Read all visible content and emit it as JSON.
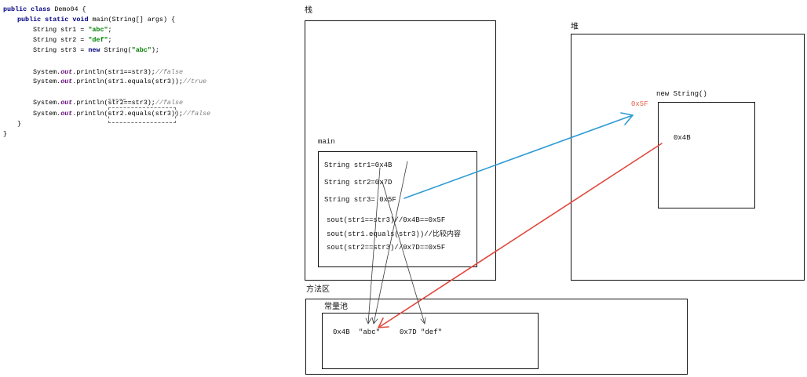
{
  "code": {
    "lines": [
      [
        "public class",
        " Demo04 {"
      ],
      [
        "public static void",
        " main(String[] args) {"
      ],
      [
        "String str1 = ",
        "\"abc\"",
        ";"
      ],
      [
        "String str2 = ",
        "\"def\"",
        ";"
      ],
      [
        "String str3 = ",
        "new",
        " String(",
        "\"abc\"",
        ");"
      ],
      [
        "System.",
        "out",
        ".println(str1==str3);",
        "//false"
      ],
      [
        "System.",
        "out",
        ".println(str1.equals(str3));",
        "//true"
      ],
      [
        "System.",
        "out",
        ".println(str2==str3);",
        "//false"
      ],
      [
        "System.",
        "out",
        ".println(str2.equals(str3));",
        "//false"
      ],
      [
        "}"
      ],
      [
        "}"
      ]
    ]
  },
  "stack": {
    "label": "栈",
    "frame": {
      "label": "main",
      "lines": [
        "String str1=0x4B",
        "String str2=0x7D",
        "String str3= 0x5F",
        "sout(str1==str3)//0x4B==0x5F",
        "sout(str1.equals(str3))//比较内容",
        "sout(str2==str3)//0x7D==0x5F"
      ]
    }
  },
  "heap": {
    "label": "堆",
    "object": {
      "label": "new String()",
      "address": "0x5F",
      "value": "0x4B"
    }
  },
  "method_area": {
    "label": "方法区",
    "constant_pool": {
      "label": "常量池",
      "entries": [
        {
          "address": "0x4B",
          "value": "\"abc\""
        },
        {
          "address": "0x7D",
          "value": "\"def\""
        }
      ]
    }
  },
  "colors": {
    "str3_to_heap_arrow": "#2E9BD6",
    "heap_to_pool_arrow": "#E0483C",
    "heap_address": "#E8604F",
    "pointer_line": "#3A3A3A"
  }
}
